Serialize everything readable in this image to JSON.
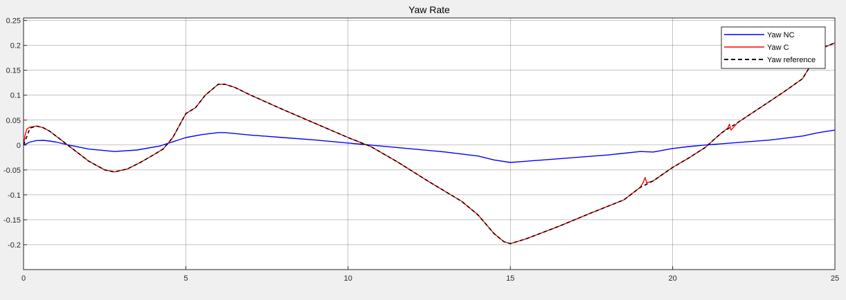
{
  "chart_data": {
    "type": "line",
    "title": "Yaw Rate",
    "xlabel": "",
    "ylabel": "",
    "xlim": [
      0,
      25
    ],
    "ylim": [
      -0.25,
      0.255
    ],
    "xticks": [
      0,
      5,
      10,
      15,
      20,
      25
    ],
    "yticks": [
      -0.2,
      -0.15,
      -0.1,
      -0.05,
      0,
      0.05,
      0.1,
      0.15,
      0.2,
      0.25
    ],
    "ytick_labels": [
      "-0.2",
      "-0.15",
      "-0.1",
      "-0.05",
      "0",
      "0.05",
      "0.1",
      "0.15",
      "0.2",
      "0.25"
    ],
    "xtick_labels": [
      "0",
      "5",
      "10",
      "15",
      "20",
      "25"
    ],
    "grid": true,
    "legend_position": "top-right",
    "colors": {
      "axes_bg": "#ffffff",
      "figure_bg": "#f0f0f0",
      "grid": "#262626"
    },
    "series": [
      {
        "name": "Yaw NC",
        "color": "#0000ff",
        "style": "solid",
        "x": [
          0,
          0.2,
          0.4,
          0.6,
          0.8,
          1.0,
          1.4,
          2.0,
          2.8,
          3.5,
          4.2,
          5.0,
          5.5,
          6.0,
          6.2,
          7.0,
          8.0,
          9.0,
          10.0,
          11.0,
          12.0,
          13.0,
          14.0,
          14.5,
          15.0,
          16.0,
          17.0,
          18.0,
          19.0,
          19.4,
          20.0,
          20.5,
          21.0,
          22.0,
          23.0,
          24.0,
          24.5,
          25.0
        ],
        "y": [
          0,
          0.006,
          0.009,
          0.0095,
          0.008,
          0.006,
          0.0,
          -0.008,
          -0.013,
          -0.01,
          -0.002,
          0.015,
          0.021,
          0.025,
          0.025,
          0.02,
          0.015,
          0.01,
          0.004,
          -0.002,
          -0.008,
          -0.014,
          -0.022,
          -0.03,
          -0.035,
          -0.03,
          -0.025,
          -0.02,
          -0.013,
          -0.014,
          -0.007,
          -0.003,
          0.0,
          0.005,
          0.01,
          0.018,
          0.025,
          0.03
        ]
      },
      {
        "name": "Yaw C",
        "color": "#ff0000",
        "style": "solid",
        "x": [
          0,
          0.05,
          0.1,
          0.2,
          0.4,
          0.6,
          0.8,
          1.0,
          1.4,
          2.0,
          2.5,
          2.8,
          3.2,
          3.6,
          4.0,
          4.3,
          4.6,
          5.0,
          5.3,
          5.6,
          6.0,
          6.2,
          6.5,
          7.0,
          8.0,
          9.0,
          10.0,
          10.7,
          11.5,
          12.5,
          13.5,
          14.0,
          14.5,
          14.8,
          15.0,
          15.5,
          16.5,
          17.5,
          18.5,
          19.0,
          19.1,
          19.15,
          19.2,
          19.4,
          20.0,
          20.5,
          21.0,
          21.5,
          21.7,
          21.75,
          21.8,
          22.0,
          23.0,
          23.5,
          24.0,
          24.3,
          24.5,
          25.0
        ],
        "y": [
          0,
          0.02,
          0.032,
          0.036,
          0.038,
          0.035,
          0.028,
          0.018,
          -0.002,
          -0.032,
          -0.05,
          -0.054,
          -0.048,
          -0.035,
          -0.02,
          -0.008,
          0.015,
          0.063,
          0.075,
          0.1,
          0.122,
          0.122,
          0.116,
          0.1,
          0.071,
          0.043,
          0.015,
          -0.003,
          -0.033,
          -0.074,
          -0.113,
          -0.14,
          -0.178,
          -0.194,
          -0.198,
          -0.188,
          -0.163,
          -0.136,
          -0.11,
          -0.085,
          -0.074,
          -0.065,
          -0.076,
          -0.072,
          -0.045,
          -0.026,
          -0.005,
          0.024,
          0.034,
          0.042,
          0.03,
          0.045,
          0.088,
          0.11,
          0.133,
          0.165,
          0.192,
          0.205
        ]
      },
      {
        "name": "Yaw reference",
        "color": "#000000",
        "style": "dashed",
        "x": [
          0,
          0.2,
          0.4,
          0.6,
          0.8,
          1.0,
          1.4,
          2.0,
          2.5,
          2.8,
          3.2,
          3.6,
          4.0,
          4.3,
          4.6,
          5.0,
          5.3,
          5.6,
          6.0,
          6.2,
          6.5,
          7.0,
          8.0,
          9.0,
          10.0,
          10.7,
          11.5,
          12.5,
          13.5,
          14.0,
          14.5,
          14.8,
          15.0,
          15.5,
          16.5,
          17.5,
          18.5,
          19.0,
          19.4,
          20.0,
          20.5,
          21.0,
          21.5,
          22.0,
          23.0,
          23.5,
          24.0,
          24.3,
          24.5,
          25.0
        ],
        "y": [
          0,
          0.034,
          0.038,
          0.035,
          0.028,
          0.018,
          -0.002,
          -0.032,
          -0.05,
          -0.054,
          -0.048,
          -0.035,
          -0.02,
          -0.008,
          0.015,
          0.063,
          0.075,
          0.1,
          0.122,
          0.122,
          0.116,
          0.1,
          0.071,
          0.043,
          0.015,
          -0.003,
          -0.033,
          -0.074,
          -0.113,
          -0.14,
          -0.178,
          -0.194,
          -0.198,
          -0.188,
          -0.163,
          -0.136,
          -0.11,
          -0.085,
          -0.072,
          -0.045,
          -0.026,
          -0.005,
          0.024,
          0.045,
          0.088,
          0.11,
          0.133,
          0.165,
          0.192,
          0.205
        ]
      }
    ]
  }
}
